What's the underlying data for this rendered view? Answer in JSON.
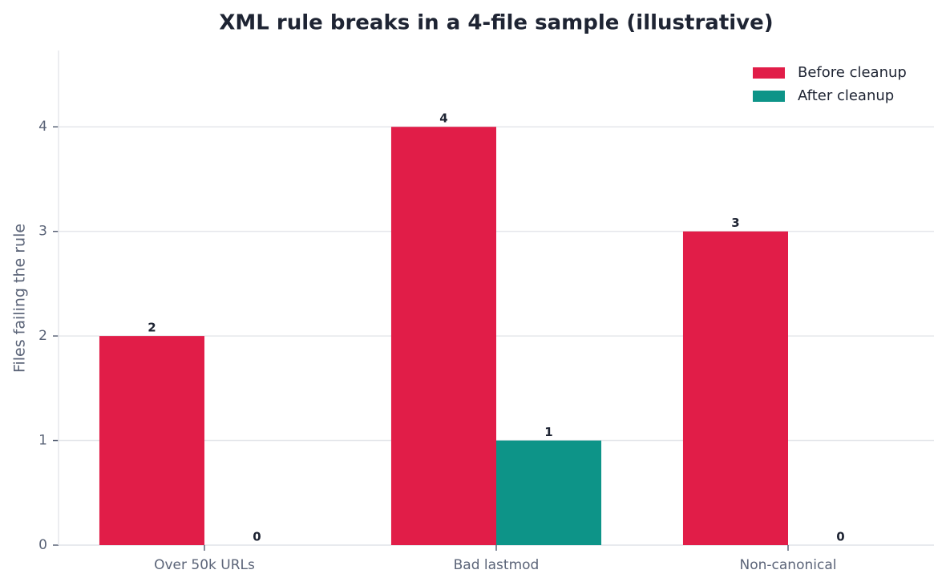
{
  "chart_data": {
    "type": "bar",
    "title": "XML rule breaks in a 4-file sample (illustrative)",
    "ylabel": "Files failing the rule",
    "categories": [
      "Over 50k URLs",
      "Bad lastmod",
      "Non-canonical"
    ],
    "series": [
      {
        "name": "Before cleanup",
        "color": "#e11d48",
        "values": [
          2,
          4,
          3
        ]
      },
      {
        "name": "After cleanup",
        "color": "#0d9488",
        "values": [
          0,
          1,
          0
        ]
      }
    ],
    "ylim": [
      0,
      4.73
    ],
    "yticks": [
      0,
      1,
      2,
      3,
      4
    ],
    "grid": true,
    "legend": "upper right"
  }
}
